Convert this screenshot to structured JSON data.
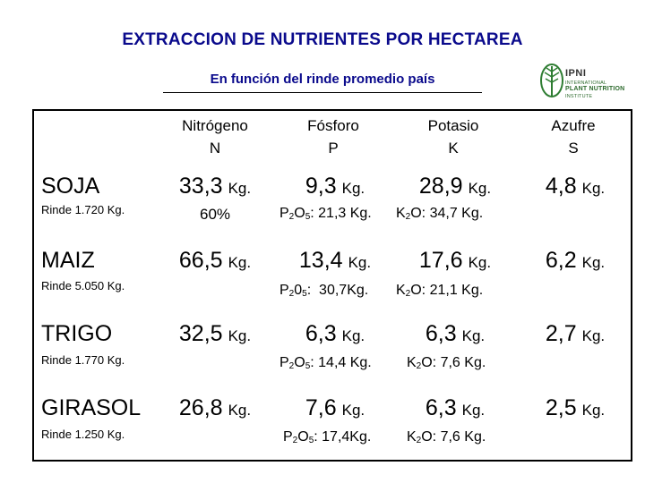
{
  "title": "EXTRACCION DE NUTRIENTES POR HECTAREA",
  "subtitle": "En función del rinde promedio país",
  "logo": {
    "name": "IPNI",
    "line1": "INTERNATIONAL",
    "line2": "PLANT NUTRITION",
    "line3": "INSTITUTE",
    "color": "#2e7d32"
  },
  "header": {
    "n": {
      "name": "Nitrógeno",
      "symbol": "N"
    },
    "p": {
      "name": "Fósforo",
      "symbol": "P"
    },
    "k": {
      "name": "Potasio",
      "symbol": "K"
    },
    "s": {
      "name": "Azufre",
      "symbol": "S"
    }
  },
  "unit": "Kg.",
  "rows": [
    {
      "crop": "SOJA",
      "rinde": "Rinde 1.720 Kg.",
      "n": "33,3",
      "p": "9,3",
      "k": "28,9",
      "s": "4,8",
      "n_extra": "60%",
      "p2o5_label": "P2O5:",
      "p2o5_value": "21,3 Kg.",
      "k2o_label": "K2O:",
      "k2o_value": "34,7 Kg."
    },
    {
      "crop": "MAIZ",
      "rinde": "Rinde 5.050 Kg.",
      "n": "66,5",
      "p": "13,4",
      "k": "17,6",
      "s": "6,2",
      "p2o5_label": "P205:",
      "p2o5_value": "30,7Kg.",
      "k2o_label": "K2O:",
      "k2o_value": "21,1 Kg."
    },
    {
      "crop": "TRIGO",
      "rinde": "Rinde 1.770 Kg.",
      "n": "32,5",
      "p": "6,3",
      "k": "6,3",
      "s": "2,7",
      "p2o5_label": "P2O5:",
      "p2o5_value": "14,4 Kg.",
      "k2o_label": "K2O:",
      "k2o_value": "7,6 Kg."
    },
    {
      "crop": "GIRASOL",
      "rinde": "Rinde 1.250 Kg.",
      "n": "26,8",
      "p": "7,6",
      "k": "6,3",
      "s": "2,5",
      "p2o5_label": "P2O5:",
      "p2o5_value": "17,4Kg.",
      "k2o_label": "K2O:",
      "k2o_value": "7,6 Kg."
    }
  ]
}
